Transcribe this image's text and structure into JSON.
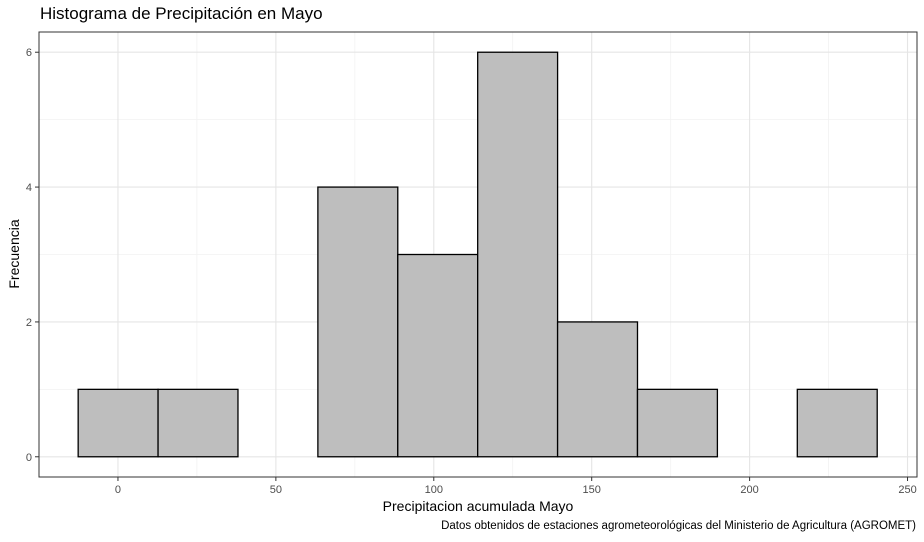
{
  "chart_data": {
    "type": "bar",
    "title": "Histograma de Precipitación en Mayo",
    "xlabel": "Precipitacion acumulada Mayo",
    "ylabel": "Frecuencia",
    "caption": "Datos obtenidos de estaciones agrometeorológicas del Ministerio de Agricultura (AGROMET)",
    "bin_width": 25.3,
    "bins": [
      {
        "x0": -12.6,
        "x1": 12.7,
        "count": 1
      },
      {
        "x0": 12.7,
        "x1": 38.0,
        "count": 1
      },
      {
        "x0": 38.0,
        "x1": 63.3,
        "count": 0
      },
      {
        "x0": 63.3,
        "x1": 88.6,
        "count": 4
      },
      {
        "x0": 88.6,
        "x1": 113.9,
        "count": 3
      },
      {
        "x0": 113.9,
        "x1": 139.2,
        "count": 6
      },
      {
        "x0": 139.2,
        "x1": 164.5,
        "count": 2
      },
      {
        "x0": 164.5,
        "x1": 189.8,
        "count": 1
      },
      {
        "x0": 189.8,
        "x1": 215.1,
        "count": 0
      },
      {
        "x0": 215.1,
        "x1": 240.4,
        "count": 1
      }
    ],
    "xlim": [
      -25,
      253
    ],
    "ylim": [
      -0.3,
      6.3
    ],
    "xticks": [
      0,
      50,
      100,
      150,
      200,
      250
    ],
    "yticks": [
      0,
      2,
      4,
      6
    ],
    "grid": true,
    "bar_fill": "#bebebe",
    "bar_stroke": "#000000"
  }
}
